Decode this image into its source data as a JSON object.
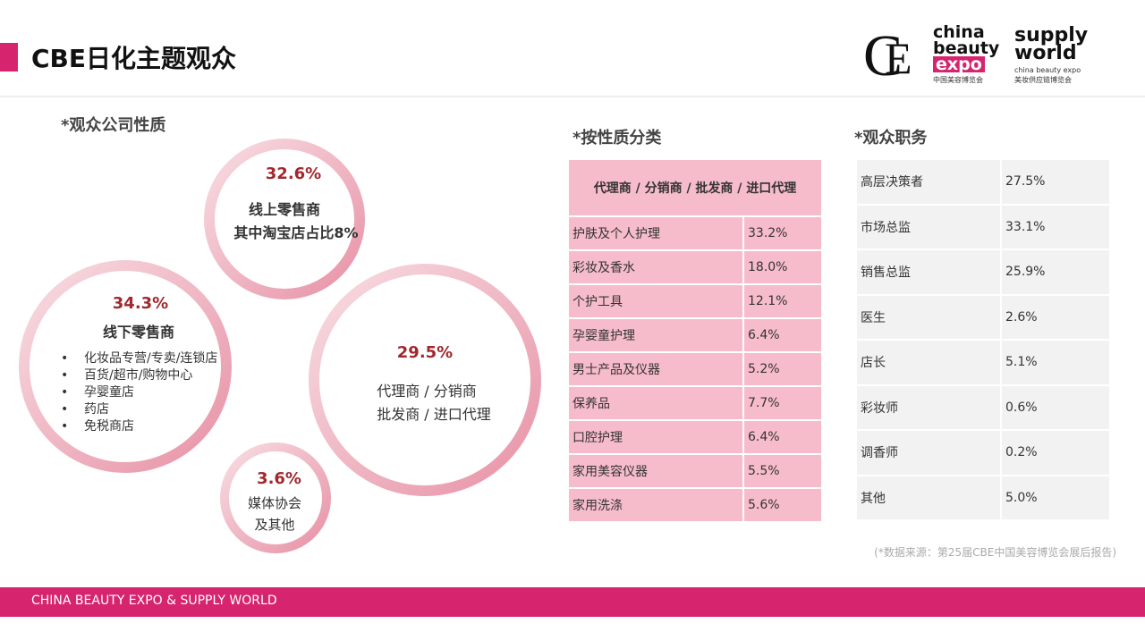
{
  "header": {
    "title": "CBE日化主题观众",
    "logo1": {
      "line1": "china",
      "line2": "beauty",
      "line3": "expo",
      "sub": "中国美容博览会"
    },
    "logo2": {
      "line1": "supply",
      "line2": "world",
      "tag": "china beauty expo",
      "sub": "美妆供应链博览会"
    }
  },
  "company_type": {
    "title": "*观众公司性质",
    "circles": [
      {
        "percent": "32.6%",
        "label": "线上零售商",
        "note": "其中淘宝店占比8%"
      },
      {
        "percent": "34.3%",
        "label": "线下零售商",
        "items": [
          "化妆品专营/专卖/连锁店",
          "百货/超市/购物中心",
          "孕婴童店",
          "药店",
          "免税商店"
        ]
      },
      {
        "percent": "29.5%",
        "lines": [
          "代理商 / 分销商",
          "批发商 / 进口代理"
        ]
      },
      {
        "percent": "3.6%",
        "lines": [
          "媒体协会",
          "及其他"
        ]
      }
    ]
  },
  "by_type": {
    "title": "*按性质分类",
    "table": {
      "header": "代理商 / 分销商 / 批发商 / 进口代理",
      "rows": [
        [
          "护肤及个人护理",
          "33.2%"
        ],
        [
          "彩妆及香水",
          "18.0%"
        ],
        [
          "个护工具",
          "12.1%"
        ],
        [
          "孕婴童护理",
          "6.4%"
        ],
        [
          "男士产品及仪器",
          "5.2%"
        ],
        [
          "保养品",
          "7.7%"
        ],
        [
          "口腔护理",
          "6.4%"
        ],
        [
          "家用美容仪器",
          "5.5%"
        ],
        [
          "家用洗涤",
          "5.6%"
        ]
      ]
    }
  },
  "positions": {
    "title": "*观众职务",
    "table": {
      "rows": [
        [
          "高层决策者",
          "27.5%"
        ],
        [
          "市场总监",
          "33.1%"
        ],
        [
          "销售总监",
          "25.9%"
        ],
        [
          "医生",
          "2.6%"
        ],
        [
          "店长",
          "5.1%"
        ],
        [
          "彩妆师",
          "0.6%"
        ],
        [
          "调香师",
          "0.2%"
        ],
        [
          "其他",
          "5.0%"
        ]
      ]
    }
  },
  "source": "(*数据来源：第25届CBE中国美容博览会展后报告)",
  "footer": "CHINA BEAUTY EXPO & SUPPLY  WORLD"
}
